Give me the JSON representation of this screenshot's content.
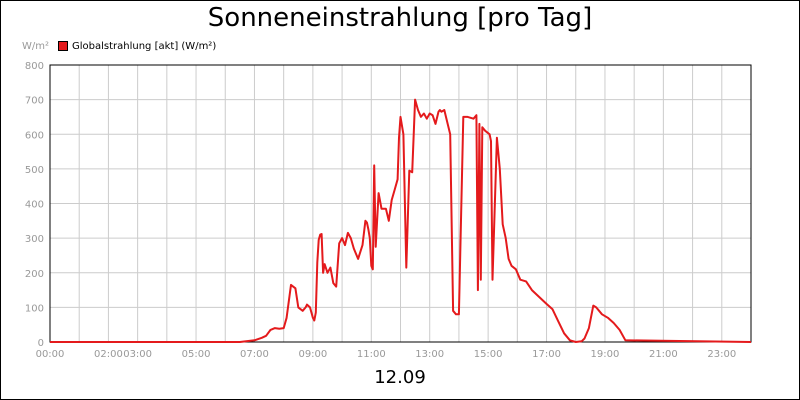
{
  "chart_data": {
    "type": "line",
    "title": "Sonneneinstrahlung [pro Tag]",
    "unit_label": "W/m²",
    "date_label": "12.09",
    "xlabel": "",
    "ylabel": "",
    "ylim": [
      0,
      800
    ],
    "xlim": [
      0,
      24
    ],
    "y_ticks": [
      0,
      100,
      200,
      300,
      400,
      500,
      600,
      700,
      800
    ],
    "x_ticks": [
      {
        "h": 0,
        "label": "00:00"
      },
      {
        "h": 2,
        "label": "02:00"
      },
      {
        "h": 3,
        "label": "03:00"
      },
      {
        "h": 5,
        "label": "05:00"
      },
      {
        "h": 7,
        "label": "07:00"
      },
      {
        "h": 9,
        "label": "09:00"
      },
      {
        "h": 11,
        "label": "11:00"
      },
      {
        "h": 13,
        "label": "13:00"
      },
      {
        "h": 15,
        "label": "15:00"
      },
      {
        "h": 17,
        "label": "17:00"
      },
      {
        "h": 19,
        "label": "19:00"
      },
      {
        "h": 21,
        "label": "21:00"
      },
      {
        "h": 23,
        "label": "23:00"
      }
    ],
    "grid": true,
    "legend_position": "top-left",
    "colors": {
      "series": "#e41a1c",
      "grid": "#cccccc",
      "axis": "#000000",
      "tick_text": "#999999"
    },
    "series": [
      {
        "name": "Globalstrahlung [akt] (W/m²)",
        "x": [
          0,
          6.5,
          7.0,
          7.25,
          7.4,
          7.55,
          7.7,
          7.85,
          8.0,
          8.1,
          8.25,
          8.4,
          8.5,
          8.65,
          8.75,
          8.8,
          8.9,
          9.0,
          9.05,
          9.1,
          9.15,
          9.2,
          9.25,
          9.3,
          9.35,
          9.4,
          9.5,
          9.6,
          9.7,
          9.8,
          9.9,
          10.0,
          10.1,
          10.2,
          10.3,
          10.4,
          10.55,
          10.7,
          10.8,
          10.85,
          10.9,
          10.95,
          11.0,
          11.05,
          11.1,
          11.15,
          11.25,
          11.35,
          11.5,
          11.6,
          11.7,
          11.8,
          11.9,
          11.95,
          12.0,
          12.1,
          12.2,
          12.3,
          12.4,
          12.5,
          12.6,
          12.7,
          12.8,
          12.9,
          13.0,
          13.1,
          13.2,
          13.3,
          13.35,
          13.4,
          13.5,
          13.7,
          13.8,
          13.9,
          14.0,
          14.15,
          14.3,
          14.5,
          14.55,
          14.6,
          14.65,
          14.7,
          14.75,
          14.8,
          14.9,
          15.05,
          15.1,
          15.15,
          15.3,
          15.4,
          15.5,
          15.6,
          15.7,
          15.8,
          15.95,
          16.1,
          16.3,
          16.5,
          16.75,
          17.0,
          17.2,
          17.4,
          17.6,
          17.8,
          18.0,
          18.2,
          18.3,
          18.45,
          18.6,
          18.7,
          18.9,
          19.1,
          19.3,
          19.5,
          19.7,
          24.0
        ],
        "values": [
          0,
          0,
          5,
          12,
          18,
          35,
          40,
          38,
          40,
          70,
          165,
          155,
          100,
          90,
          100,
          108,
          100,
          70,
          62,
          85,
          230,
          295,
          310,
          312,
          200,
          225,
          200,
          215,
          170,
          160,
          285,
          300,
          280,
          315,
          300,
          270,
          240,
          280,
          350,
          345,
          325,
          300,
          220,
          210,
          510,
          275,
          430,
          385,
          385,
          350,
          410,
          440,
          470,
          590,
          650,
          600,
          215,
          495,
          490,
          700,
          670,
          650,
          660,
          645,
          660,
          655,
          630,
          665,
          670,
          665,
          670,
          600,
          90,
          80,
          80,
          650,
          650,
          645,
          650,
          655,
          150,
          630,
          180,
          620,
          610,
          600,
          580,
          180,
          590,
          500,
          340,
          300,
          240,
          220,
          210,
          180,
          175,
          150,
          130,
          110,
          95,
          60,
          25,
          5,
          0,
          2,
          10,
          40,
          105,
          100,
          80,
          70,
          55,
          35,
          5,
          0
        ]
      }
    ]
  }
}
